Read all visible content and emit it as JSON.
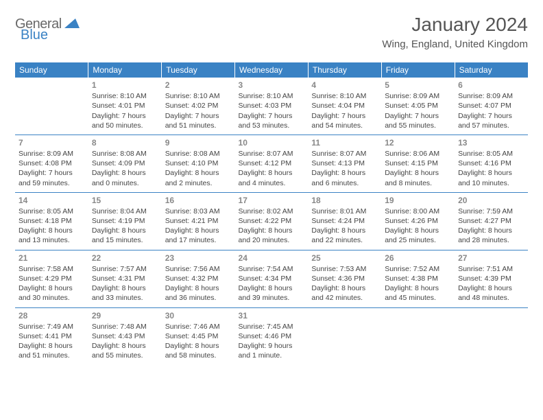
{
  "logo": {
    "text_gray": "General",
    "text_blue": "Blue"
  },
  "header": {
    "title": "January 2024",
    "location": "Wing, England, United Kingdom"
  },
  "colors": {
    "header_bg": "#3a82c4",
    "header_fg": "#ffffff",
    "cell_border": "#3a82c4",
    "daynum": "#888888",
    "body_text": "#444444"
  },
  "day_headers": [
    "Sunday",
    "Monday",
    "Tuesday",
    "Wednesday",
    "Thursday",
    "Friday",
    "Saturday"
  ],
  "weeks": [
    [
      null,
      {
        "n": "1",
        "sr": "Sunrise: 8:10 AM",
        "ss": "Sunset: 4:01 PM",
        "d1": "Daylight: 7 hours",
        "d2": "and 50 minutes."
      },
      {
        "n": "2",
        "sr": "Sunrise: 8:10 AM",
        "ss": "Sunset: 4:02 PM",
        "d1": "Daylight: 7 hours",
        "d2": "and 51 minutes."
      },
      {
        "n": "3",
        "sr": "Sunrise: 8:10 AM",
        "ss": "Sunset: 4:03 PM",
        "d1": "Daylight: 7 hours",
        "d2": "and 53 minutes."
      },
      {
        "n": "4",
        "sr": "Sunrise: 8:10 AM",
        "ss": "Sunset: 4:04 PM",
        "d1": "Daylight: 7 hours",
        "d2": "and 54 minutes."
      },
      {
        "n": "5",
        "sr": "Sunrise: 8:09 AM",
        "ss": "Sunset: 4:05 PM",
        "d1": "Daylight: 7 hours",
        "d2": "and 55 minutes."
      },
      {
        "n": "6",
        "sr": "Sunrise: 8:09 AM",
        "ss": "Sunset: 4:07 PM",
        "d1": "Daylight: 7 hours",
        "d2": "and 57 minutes."
      }
    ],
    [
      {
        "n": "7",
        "sr": "Sunrise: 8:09 AM",
        "ss": "Sunset: 4:08 PM",
        "d1": "Daylight: 7 hours",
        "d2": "and 59 minutes."
      },
      {
        "n": "8",
        "sr": "Sunrise: 8:08 AM",
        "ss": "Sunset: 4:09 PM",
        "d1": "Daylight: 8 hours",
        "d2": "and 0 minutes."
      },
      {
        "n": "9",
        "sr": "Sunrise: 8:08 AM",
        "ss": "Sunset: 4:10 PM",
        "d1": "Daylight: 8 hours",
        "d2": "and 2 minutes."
      },
      {
        "n": "10",
        "sr": "Sunrise: 8:07 AM",
        "ss": "Sunset: 4:12 PM",
        "d1": "Daylight: 8 hours",
        "d2": "and 4 minutes."
      },
      {
        "n": "11",
        "sr": "Sunrise: 8:07 AM",
        "ss": "Sunset: 4:13 PM",
        "d1": "Daylight: 8 hours",
        "d2": "and 6 minutes."
      },
      {
        "n": "12",
        "sr": "Sunrise: 8:06 AM",
        "ss": "Sunset: 4:15 PM",
        "d1": "Daylight: 8 hours",
        "d2": "and 8 minutes."
      },
      {
        "n": "13",
        "sr": "Sunrise: 8:05 AM",
        "ss": "Sunset: 4:16 PM",
        "d1": "Daylight: 8 hours",
        "d2": "and 10 minutes."
      }
    ],
    [
      {
        "n": "14",
        "sr": "Sunrise: 8:05 AM",
        "ss": "Sunset: 4:18 PM",
        "d1": "Daylight: 8 hours",
        "d2": "and 13 minutes."
      },
      {
        "n": "15",
        "sr": "Sunrise: 8:04 AM",
        "ss": "Sunset: 4:19 PM",
        "d1": "Daylight: 8 hours",
        "d2": "and 15 minutes."
      },
      {
        "n": "16",
        "sr": "Sunrise: 8:03 AM",
        "ss": "Sunset: 4:21 PM",
        "d1": "Daylight: 8 hours",
        "d2": "and 17 minutes."
      },
      {
        "n": "17",
        "sr": "Sunrise: 8:02 AM",
        "ss": "Sunset: 4:22 PM",
        "d1": "Daylight: 8 hours",
        "d2": "and 20 minutes."
      },
      {
        "n": "18",
        "sr": "Sunrise: 8:01 AM",
        "ss": "Sunset: 4:24 PM",
        "d1": "Daylight: 8 hours",
        "d2": "and 22 minutes."
      },
      {
        "n": "19",
        "sr": "Sunrise: 8:00 AM",
        "ss": "Sunset: 4:26 PM",
        "d1": "Daylight: 8 hours",
        "d2": "and 25 minutes."
      },
      {
        "n": "20",
        "sr": "Sunrise: 7:59 AM",
        "ss": "Sunset: 4:27 PM",
        "d1": "Daylight: 8 hours",
        "d2": "and 28 minutes."
      }
    ],
    [
      {
        "n": "21",
        "sr": "Sunrise: 7:58 AM",
        "ss": "Sunset: 4:29 PM",
        "d1": "Daylight: 8 hours",
        "d2": "and 30 minutes."
      },
      {
        "n": "22",
        "sr": "Sunrise: 7:57 AM",
        "ss": "Sunset: 4:31 PM",
        "d1": "Daylight: 8 hours",
        "d2": "and 33 minutes."
      },
      {
        "n": "23",
        "sr": "Sunrise: 7:56 AM",
        "ss": "Sunset: 4:32 PM",
        "d1": "Daylight: 8 hours",
        "d2": "and 36 minutes."
      },
      {
        "n": "24",
        "sr": "Sunrise: 7:54 AM",
        "ss": "Sunset: 4:34 PM",
        "d1": "Daylight: 8 hours",
        "d2": "and 39 minutes."
      },
      {
        "n": "25",
        "sr": "Sunrise: 7:53 AM",
        "ss": "Sunset: 4:36 PM",
        "d1": "Daylight: 8 hours",
        "d2": "and 42 minutes."
      },
      {
        "n": "26",
        "sr": "Sunrise: 7:52 AM",
        "ss": "Sunset: 4:38 PM",
        "d1": "Daylight: 8 hours",
        "d2": "and 45 minutes."
      },
      {
        "n": "27",
        "sr": "Sunrise: 7:51 AM",
        "ss": "Sunset: 4:39 PM",
        "d1": "Daylight: 8 hours",
        "d2": "and 48 minutes."
      }
    ],
    [
      {
        "n": "28",
        "sr": "Sunrise: 7:49 AM",
        "ss": "Sunset: 4:41 PM",
        "d1": "Daylight: 8 hours",
        "d2": "and 51 minutes."
      },
      {
        "n": "29",
        "sr": "Sunrise: 7:48 AM",
        "ss": "Sunset: 4:43 PM",
        "d1": "Daylight: 8 hours",
        "d2": "and 55 minutes."
      },
      {
        "n": "30",
        "sr": "Sunrise: 7:46 AM",
        "ss": "Sunset: 4:45 PM",
        "d1": "Daylight: 8 hours",
        "d2": "and 58 minutes."
      },
      {
        "n": "31",
        "sr": "Sunrise: 7:45 AM",
        "ss": "Sunset: 4:46 PM",
        "d1": "Daylight: 9 hours",
        "d2": "and 1 minute."
      },
      null,
      null,
      null
    ]
  ]
}
